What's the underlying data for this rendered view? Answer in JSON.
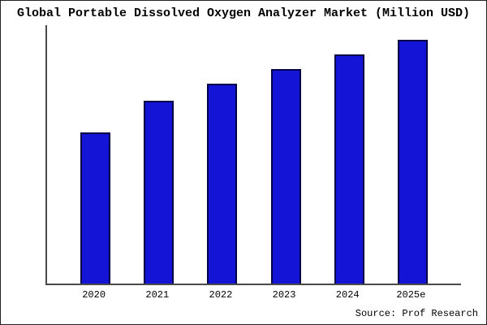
{
  "title": "Global Portable Dissolved Oxygen Analyzer Market (Million USD)",
  "source": "Source: Prof Research",
  "colors": {
    "bar_fill": "#1414d6",
    "bar_border": "#000046",
    "axis": "#4a4a4a",
    "background": "#ffffff",
    "text": "#000000"
  },
  "chart_data": {
    "type": "bar",
    "title": "Global Portable Dissolved Oxygen Analyzer Market (Million USD)",
    "categories": [
      "2020",
      "2021",
      "2022",
      "2023",
      "2024",
      "2025e"
    ],
    "values": [
      62,
      75,
      82,
      88,
      94,
      100
    ],
    "xlabel": "",
    "ylabel": "",
    "ylim": [
      0,
      106
    ],
    "grid": false,
    "legend": false,
    "note": "no y-axis tick labels shown; values estimated from relative bar heights"
  }
}
